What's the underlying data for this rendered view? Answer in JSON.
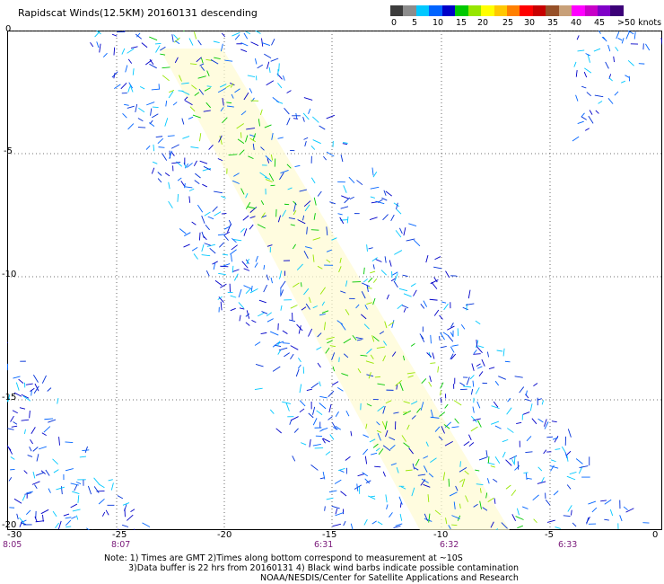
{
  "title": "Rapidscat Winds(12.5KM) 20160131 descending",
  "colorbar": {
    "colors": [
      "#3c3c3c",
      "#8c8c8c",
      "#00c8ff",
      "#0064ff",
      "#0000c8",
      "#00c800",
      "#96e600",
      "#ffff00",
      "#ffc800",
      "#ff8000",
      "#ff0000",
      "#c80000",
      "#965028",
      "#c8a078",
      "#ff00ff",
      "#c800c8",
      "#8000c8",
      "#3c0078"
    ],
    "labels": [
      "0",
      "5",
      "10",
      "15",
      "20",
      "25",
      "30",
      "35",
      "40",
      "45",
      ">50 knots"
    ]
  },
  "map": {
    "lat_labels": [
      "0",
      "-5",
      "-10",
      "-15",
      "-20"
    ],
    "lon_labels": [
      "-25",
      "-20",
      "-15",
      "-10",
      "-5",
      "0"
    ],
    "corner_lat": "-20",
    "corner_lon": "-30",
    "times": [
      "8:05",
      "8:07",
      "6:31",
      "6:32",
      "6:33"
    ]
  },
  "notes": {
    "line1": "Note: 1) Times are GMT 2)Times along bottom correspond to measurement at ~10S",
    "line2": "3)Data buffer is 22 hrs from 20160131 4) Black wind barbs indicate possible contamination",
    "line3": "NOAA/NESDIS/Center for Satellite Applications and Research"
  }
}
